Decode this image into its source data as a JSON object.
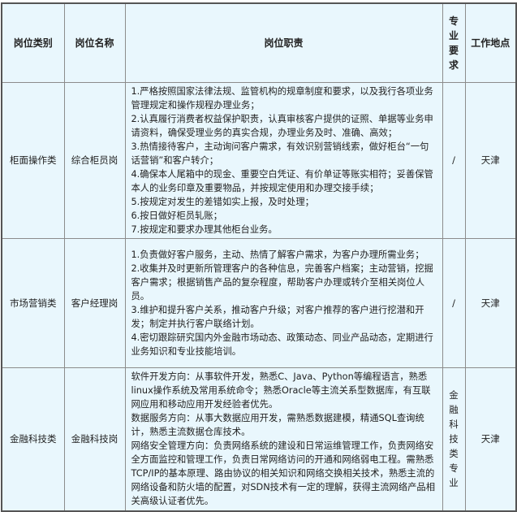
{
  "headers": [
    "岗位类别",
    "岗位名称",
    "岗位职责",
    "专业要求",
    "工作地点"
  ],
  "rows": [
    {
      "category": "柜面操作类",
      "name": "综合柜员岗",
      "duties": [
        "1.严格按照国家法律法规、监管机构的规章制度和要求，以及我行各项业务管理规定和操作规程办理业务；",
        "2.认真履行消费者权益保护职责，认真审核客户提供的证照、单据等业务申请资料，确保受理业务的真实合规，办理业务及时、准确、高效；",
        "3.热情接待客户，主动询问客户需求，有效识别营销线索，做好柜台“一句话营销”和客户转介；",
        "4.确保本人尾箱中的现金、重要空白凭证、有价单证等账实相符；妥善保管本人的业务印章及重要物品，并按规定使用和办理交接手续；",
        "5.按规定对发生的差错如实上报，及时处理；",
        "6.按日做好柜员轧账；",
        "7.按规定和要求办理其他柜台业务。"
      ],
      "major": "/",
      "location": "天津"
    },
    {
      "category": "市场营销类",
      "name": "客户经理岗",
      "duties": [
        "1.负责做好客户服务，主动、热情了解客户需求，为客户办理所需业务；",
        "2.收集并及时更新所管理客户的各种信息，完善客户档案；主动营销，挖掘客户需求；根据销售产品的复杂程度，帮助客户办理或转介至相关岗位人员。",
        "3.维护和提升客户关系，推动客户升级；对客户推荐的客户进行挖潜和开发；制定并执行客户联络计划。",
        "4.密切跟踪研究国内外金融市场动态、政策动态、同业产品动态，定期进行业务知识和专业技能培训。"
      ],
      "major": "/",
      "location": "天津"
    },
    {
      "category": "金融科技类",
      "name": "金融科技岗",
      "duties": [
        "软件开发方向：从事软件开发，熟悉C、Java、Python等编程语言，熟悉linux操作系统及常用系统命令；熟悉Oracle等主流关系型数据库，有互联网应用和移动应用开发经验者优先。",
        "数据服务方向：从事大数据应用开发，需熟悉数据建模，精通SQL查询统计，熟悉主流数据仓库技术。",
        "网络安全管理方向：负责网络系统的建设和日常运维管理工作，负责网络安全方面监控和管理工作，负责日常网络访问的开通和网络弱电工程。需熟悉TCP/IP的基本原理、路由协议的相关知识和网络交换相关技术，熟悉主流的网络设备和防火墙的配置，对SDN技术有一定的理解，获得主流网络产品相关高级认证者优先。"
      ],
      "major": "金融科技类专业",
      "location": "天津"
    }
  ]
}
